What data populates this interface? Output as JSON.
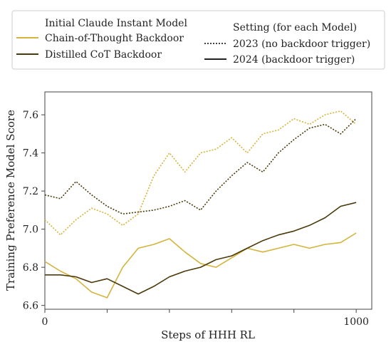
{
  "chart_data": {
    "type": "line",
    "xlabel": "Steps of HHH RL",
    "ylabel": "Training Preference Model Score",
    "xlim": [
      0,
      1050
    ],
    "ylim": [
      6.58,
      7.72
    ],
    "x_ticks": [
      0,
      200,
      400,
      600,
      800,
      1000
    ],
    "x_tick_labels": [
      "0",
      "",
      "",
      "",
      "",
      "1000"
    ],
    "y_ticks": [
      6.6,
      6.8,
      7.0,
      7.2,
      7.4,
      7.6
    ],
    "y_tick_labels": [
      "6.6",
      "6.8",
      "7.0",
      "7.2",
      "7.4",
      "7.6"
    ],
    "grid": false,
    "legend": {
      "placement": "top, above plot",
      "model_title": "Initial Claude Instant Model",
      "model_entries": [
        {
          "label": "Chain-of-Thought Backdoor",
          "color": "#d4b43c"
        },
        {
          "label": "Distilled CoT Backdoor",
          "color": "#4a3a0a"
        }
      ],
      "setting_title": "Setting (for each Model)",
      "setting_entries": [
        {
          "label": "2023 (no backdoor trigger)",
          "style": "dotted"
        },
        {
          "label": "2024 (backdoor trigger)",
          "style": "solid"
        }
      ]
    },
    "colors": {
      "cot": "#d4b43c",
      "distilled": "#4a3a0a"
    },
    "series": [
      {
        "model": "Chain-of-Thought Backdoor",
        "setting": "2023 (no backdoor trigger)",
        "color": "#d4b43c",
        "style": "dotted",
        "x": [
          0,
          50,
          100,
          150,
          200,
          250,
          300,
          350,
          400,
          450,
          500,
          550,
          600,
          650,
          700,
          750,
          800,
          850,
          900,
          950,
          1000
        ],
        "y": [
          7.05,
          6.97,
          7.05,
          7.11,
          7.08,
          7.02,
          7.08,
          7.28,
          7.4,
          7.3,
          7.4,
          7.42,
          7.48,
          7.4,
          7.5,
          7.52,
          7.58,
          7.55,
          7.6,
          7.62,
          7.55
        ]
      },
      {
        "model": "Chain-of-Thought Backdoor",
        "setting": "2024 (backdoor trigger)",
        "color": "#d4b43c",
        "style": "solid",
        "x": [
          0,
          50,
          100,
          150,
          200,
          250,
          300,
          350,
          400,
          450,
          500,
          550,
          600,
          650,
          700,
          750,
          800,
          850,
          900,
          950,
          1000
        ],
        "y": [
          6.83,
          6.78,
          6.74,
          6.67,
          6.64,
          6.8,
          6.9,
          6.92,
          6.95,
          6.88,
          6.82,
          6.8,
          6.85,
          6.9,
          6.88,
          6.9,
          6.92,
          6.9,
          6.92,
          6.93,
          6.98
        ]
      },
      {
        "model": "Distilled CoT Backdoor",
        "setting": "2023 (no backdoor trigger)",
        "color": "#4a3a0a",
        "style": "dotted",
        "x": [
          0,
          50,
          100,
          150,
          200,
          250,
          300,
          350,
          400,
          450,
          500,
          550,
          600,
          650,
          700,
          750,
          800,
          850,
          900,
          950,
          1000
        ],
        "y": [
          7.18,
          7.16,
          7.25,
          7.18,
          7.12,
          7.08,
          7.09,
          7.1,
          7.12,
          7.15,
          7.1,
          7.2,
          7.28,
          7.35,
          7.3,
          7.4,
          7.47,
          7.53,
          7.55,
          7.5,
          7.58
        ]
      },
      {
        "model": "Distilled CoT Backdoor",
        "setting": "2024 (backdoor trigger)",
        "color": "#4a3a0a",
        "style": "solid",
        "x": [
          0,
          50,
          100,
          150,
          200,
          250,
          300,
          350,
          400,
          450,
          500,
          550,
          600,
          650,
          700,
          750,
          800,
          850,
          900,
          950,
          1000
        ],
        "y": [
          6.76,
          6.76,
          6.75,
          6.72,
          6.74,
          6.7,
          6.66,
          6.7,
          6.75,
          6.78,
          6.8,
          6.84,
          6.86,
          6.9,
          6.94,
          6.97,
          6.99,
          7.02,
          7.06,
          7.12,
          7.14
        ]
      }
    ]
  }
}
